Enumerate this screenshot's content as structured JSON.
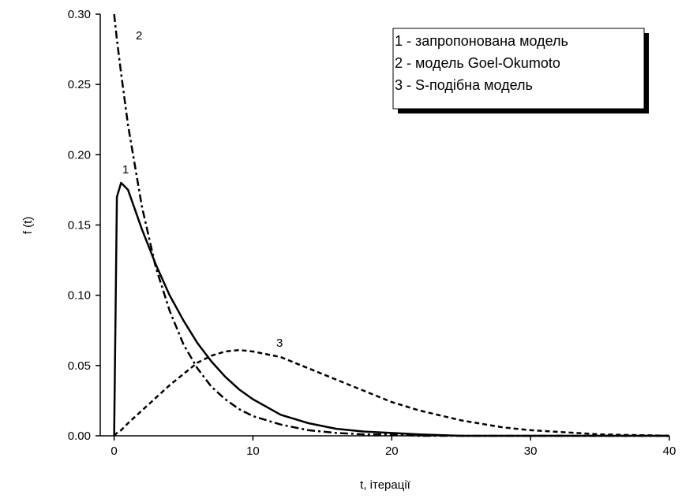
{
  "chart_data": {
    "type": "line",
    "xlabel": "t, ітерації",
    "ylabel": "f (t)",
    "x": [
      0,
      0.2,
      0.5,
      1,
      2,
      3,
      4,
      5,
      6,
      7,
      8,
      9,
      10,
      12,
      14,
      16,
      18,
      20,
      22,
      25,
      28,
      30,
      35,
      40
    ],
    "series": [
      {
        "name": "1 - запропонована модель",
        "label": "1",
        "color": "#000000",
        "style": "solid",
        "values": [
          0,
          0.17,
          0.18,
          0.175,
          0.147,
          0.122,
          0.1,
          0.082,
          0.066,
          0.053,
          0.042,
          0.033,
          0.026,
          0.015,
          0.009,
          0.005,
          0.003,
          0.002,
          0.001,
          0.0,
          0.0,
          0.0,
          0.0,
          0.0
        ]
      },
      {
        "name": "2 - модель Goel-Okumoto",
        "label": "2",
        "color": "#000000",
        "style": "dashdot",
        "values": [
          0.3,
          0.282,
          0.258,
          0.221,
          0.163,
          0.12,
          0.089,
          0.065,
          0.048,
          0.035,
          0.026,
          0.019,
          0.014,
          0.008,
          0.004,
          0.002,
          0.001,
          0.001,
          0.0,
          0.0,
          0.0,
          0.0,
          0.0,
          0.0
        ]
      },
      {
        "name": "3 - S-подібна модель",
        "label": "3",
        "color": "#000000",
        "style": "dash",
        "values": [
          0,
          0.002,
          0.004,
          0.009,
          0.018,
          0.027,
          0.036,
          0.044,
          0.052,
          0.057,
          0.06,
          0.061,
          0.06,
          0.056,
          0.048,
          0.04,
          0.032,
          0.024,
          0.018,
          0.011,
          0.006,
          0.004,
          0.001,
          0.0
        ]
      }
    ],
    "xlim": [
      -1,
      40
    ],
    "ylim": [
      0,
      0.3
    ],
    "xticks": [
      0,
      10,
      20,
      30,
      40
    ],
    "yticks": [
      {
        "value": 0,
        "label": "0.00"
      },
      {
        "value": 0.05,
        "label": "0.05"
      },
      {
        "value": 0.1,
        "label": "0.10"
      },
      {
        "value": 0.15,
        "label": "0.15"
      },
      {
        "value": 0.2,
        "label": "0.20"
      },
      {
        "value": 0.25,
        "label": "0.25"
      },
      {
        "value": 0.3,
        "label": "0.30"
      }
    ],
    "grid": false,
    "legend": "upper right"
  }
}
